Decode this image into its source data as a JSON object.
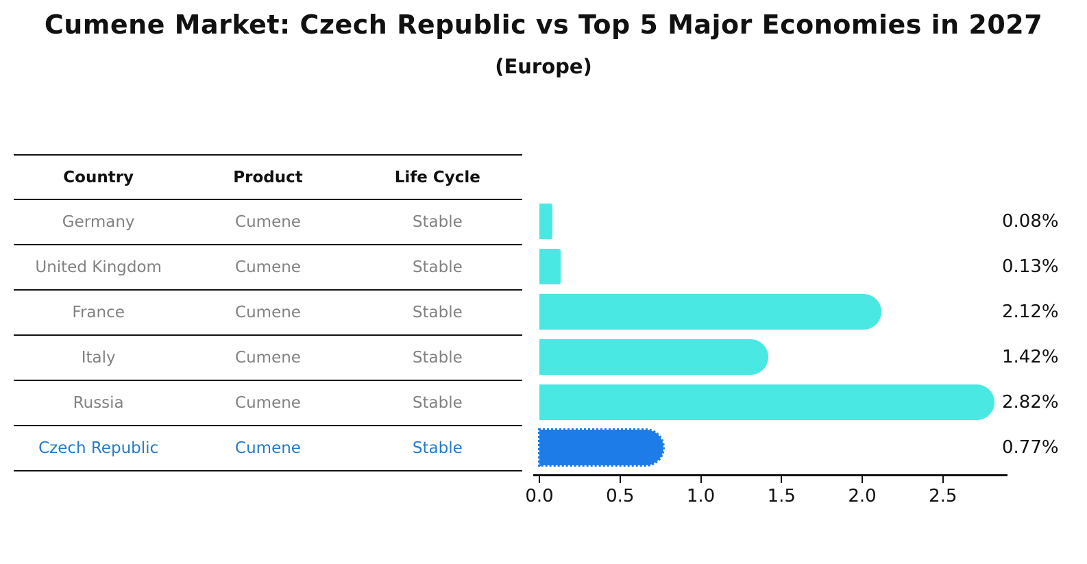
{
  "title": "Cumene Market: Czech Republic vs Top 5 Major Economies in 2027",
  "subtitle": "(Europe)",
  "table": {
    "headers": [
      "Country",
      "Product",
      "Life Cycle"
    ],
    "rows": [
      {
        "country": "Germany",
        "product": "Cumene",
        "life_cycle": "Stable",
        "highlighted": false
      },
      {
        "country": "United Kingdom",
        "product": "Cumene",
        "life_cycle": "Stable",
        "highlighted": false
      },
      {
        "country": "France",
        "product": "Cumene",
        "life_cycle": "Stable",
        "highlighted": false
      },
      {
        "country": "Italy",
        "product": "Cumene",
        "life_cycle": "Stable",
        "highlighted": false
      },
      {
        "country": "Russia",
        "product": "Cumene",
        "life_cycle": "Stable",
        "highlighted": false
      },
      {
        "country": "Czech Republic",
        "product": "Cumene",
        "life_cycle": "Stable",
        "highlighted": true
      }
    ]
  },
  "chart_data": {
    "type": "bar",
    "orientation": "horizontal",
    "title": "Cumene Market: Czech Republic vs Top 5 Major Economies in 2027",
    "subtitle": "(Europe)",
    "categories": [
      "Germany",
      "United Kingdom",
      "France",
      "Italy",
      "Russia",
      "Czech Republic"
    ],
    "values": [
      0.08,
      0.13,
      2.12,
      1.42,
      2.82,
      0.77
    ],
    "value_labels": [
      "0.08%",
      "0.13%",
      "2.12%",
      "1.42%",
      "2.82%",
      "0.77%"
    ],
    "unit": "%",
    "highlight_index": 5,
    "xlim": [
      0,
      2.9
    ],
    "x_ticks": [
      0.0,
      0.5,
      1.0,
      1.5,
      2.0,
      2.5
    ],
    "x_tick_labels": [
      "0.0",
      "0.5",
      "1.0",
      "1.5",
      "2.0",
      "2.5"
    ],
    "grid": false,
    "legend": false
  },
  "colors": {
    "bar_default": "#4AE8E3",
    "bar_highlight": "#1E7CE8",
    "highlight_text": "#257BCA",
    "row_text": "#828282",
    "heading_text": "#111111",
    "line": "#111111"
  }
}
